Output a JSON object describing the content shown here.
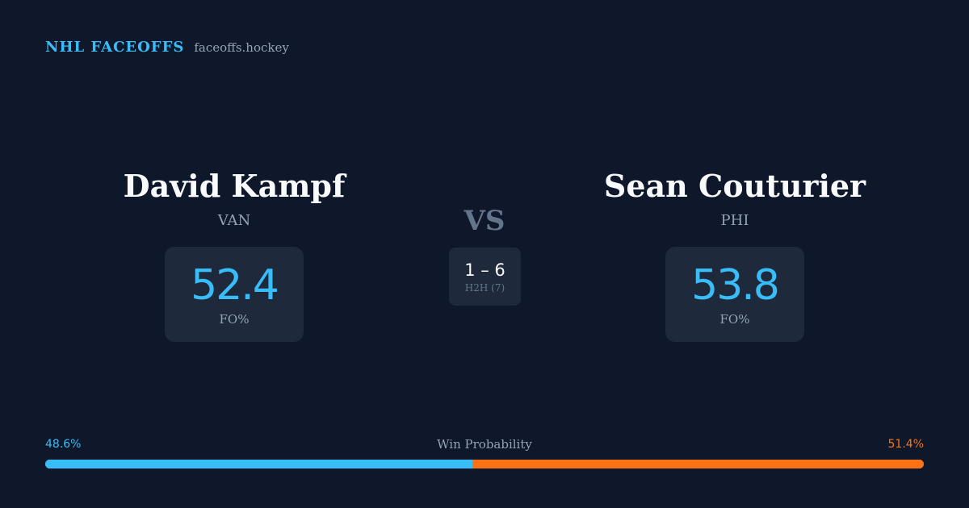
{
  "brand": {
    "name": "NHL FACEOFFS",
    "site": "faceoffs.hockey"
  },
  "matchup": {
    "vs_label": "VS",
    "left_player": {
      "name": "David Kampf",
      "team": "VAN",
      "fo_pct": "52.4",
      "fo_label": "FO%"
    },
    "right_player": {
      "name": "Sean Couturier",
      "team": "PHI",
      "fo_pct": "53.8",
      "fo_label": "FO%"
    },
    "head_to_head": {
      "score": "1 – 6",
      "label": "H2H (7)"
    }
  },
  "win_probability": {
    "title": "Win Probability",
    "left_label": "48.6%",
    "right_label": "51.4%",
    "left_value": 48.6,
    "right_value": 51.4,
    "left_color": "#38bdf8",
    "right_color": "#f97316"
  }
}
